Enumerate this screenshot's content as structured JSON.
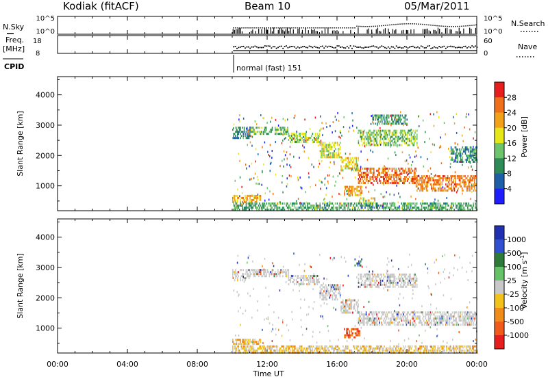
{
  "header": {
    "station": "Kodiak (fitACF)",
    "beam": "Beam 10",
    "date": "05/Mar/2011"
  },
  "top_panels": {
    "nsky_label": "N.Sky",
    "nsearch_label": "N.Search",
    "nsky_ticks": [
      "10^5",
      "10^0"
    ],
    "nsearch_ticks": [
      "10^5",
      "10^0"
    ],
    "freq_label": "Freq.",
    "freq_unit": "[MHz]",
    "freq_ticks": [
      "18",
      "8"
    ],
    "nave_label": "Nave",
    "nave_ticks": [
      "60",
      "0"
    ],
    "cpid_label": "CPID",
    "cpid_text": "normal (fast) 151"
  },
  "colors": {
    "power_scale": [
      "#1e1eff",
      "#1f5fa8",
      "#2e8b57",
      "#6dc46d",
      "#e6e619",
      "#f2a218",
      "#ef6f1a",
      "#e61e1e"
    ],
    "velocity_scale": [
      "#2030b0",
      "#3050d0",
      "#2e7a3a",
      "#66c266",
      "#c8c8c8",
      "#f0c21a",
      "#f08c1a",
      "#f05a1a",
      "#e61e1e"
    ]
  },
  "chart_data": [
    {
      "type": "heatmap",
      "name": "power-panel",
      "ylabel": "Slant Range [km]",
      "ylim": [
        180,
        4600
      ],
      "yticks": [
        1000,
        2000,
        3000,
        4000
      ],
      "xlim_hours": [
        0,
        24
      ],
      "colorbar": {
        "label": "Power [dB]",
        "ticks": [
          "4",
          "8",
          "12",
          "16",
          "20",
          "24",
          "28"
        ],
        "range": [
          0,
          30
        ]
      },
      "echo_bands": [
        {
          "t0": 10.0,
          "t1": 11.0,
          "r0": 2550,
          "r1": 2950,
          "level": 0.25
        },
        {
          "t0": 11.0,
          "t1": 13.2,
          "r0": 2700,
          "r1": 2950,
          "level": 0.4
        },
        {
          "t0": 13.2,
          "t1": 15.0,
          "r0": 2450,
          "r1": 2750,
          "level": 0.45
        },
        {
          "t0": 15.0,
          "t1": 16.2,
          "r0": 1950,
          "r1": 2450,
          "level": 0.55
        },
        {
          "t0": 16.2,
          "t1": 17.2,
          "r0": 1500,
          "r1": 1950,
          "level": 0.6
        },
        {
          "t0": 17.2,
          "t1": 20.5,
          "r0": 1100,
          "r1": 1600,
          "level": 0.85
        },
        {
          "t0": 20.5,
          "t1": 24.0,
          "r0": 850,
          "r1": 1350,
          "level": 0.8
        },
        {
          "t0": 17.2,
          "t1": 20.6,
          "r0": 2350,
          "r1": 2850,
          "level": 0.45
        },
        {
          "t0": 18.0,
          "t1": 20.0,
          "r0": 3050,
          "r1": 3350,
          "level": 0.3
        },
        {
          "t0": 16.4,
          "t1": 17.4,
          "r0": 700,
          "r1": 1000,
          "level": 0.75
        },
        {
          "t0": 17.2,
          "t1": 18.2,
          "r0": 450,
          "r1": 620,
          "level": 0.6
        },
        {
          "t0": 10.0,
          "t1": 11.6,
          "r0": 450,
          "r1": 700,
          "level": 0.7
        },
        {
          "t0": 10.0,
          "t1": 24.0,
          "r0": 180,
          "r1": 450,
          "level": 0.35
        },
        {
          "t0": 22.5,
          "t1": 24.0,
          "r0": 1800,
          "r1": 2300,
          "level": 0.3
        }
      ]
    },
    {
      "type": "heatmap",
      "name": "velocity-panel",
      "ylabel": "Slant Range [km]",
      "xlabel": "Time UT",
      "ylim": [
        180,
        4600
      ],
      "yticks": [
        1000,
        2000,
        3000,
        4000
      ],
      "xticks": [
        "00:00",
        "04:00",
        "08:00",
        "12:00",
        "16:00",
        "20:00",
        "00:00"
      ],
      "xlim_hours": [
        0,
        24
      ],
      "colorbar": {
        "label": "Velocity [m s^-1]",
        "ticks": [
          "1000",
          "500",
          "100",
          "25",
          "-25",
          "-100",
          "-500",
          "-1000"
        ]
      },
      "echo_bands": [
        {
          "t0": 10.0,
          "t1": 11.0,
          "r0": 2600,
          "r1": 2950,
          "vel": 0.0
        },
        {
          "t0": 11.0,
          "t1": 13.2,
          "r0": 2700,
          "r1": 2950,
          "vel": 0.0
        },
        {
          "t0": 13.2,
          "t1": 15.0,
          "r0": 2450,
          "r1": 2750,
          "vel": 0.0
        },
        {
          "t0": 15.0,
          "t1": 16.2,
          "r0": 1950,
          "r1": 2450,
          "vel": 0.0
        },
        {
          "t0": 16.2,
          "t1": 17.2,
          "r0": 1500,
          "r1": 1950,
          "vel": 0.0
        },
        {
          "t0": 17.2,
          "t1": 24.0,
          "r0": 1100,
          "r1": 1550,
          "vel": 0.0
        },
        {
          "t0": 17.2,
          "t1": 20.6,
          "r0": 2350,
          "r1": 2800,
          "vel": 0.0
        },
        {
          "t0": 16.4,
          "t1": 17.3,
          "r0": 700,
          "r1": 1000,
          "vel": -0.7
        },
        {
          "t0": 10.0,
          "t1": 11.6,
          "r0": 450,
          "r1": 650,
          "vel": -0.3
        },
        {
          "t0": 10.0,
          "t1": 24.0,
          "r0": 180,
          "r1": 430,
          "vel": -0.2
        },
        {
          "t0": 17.0,
          "t1": 17.4,
          "r0": 3050,
          "r1": 3300,
          "vel": 0.6
        }
      ]
    }
  ]
}
